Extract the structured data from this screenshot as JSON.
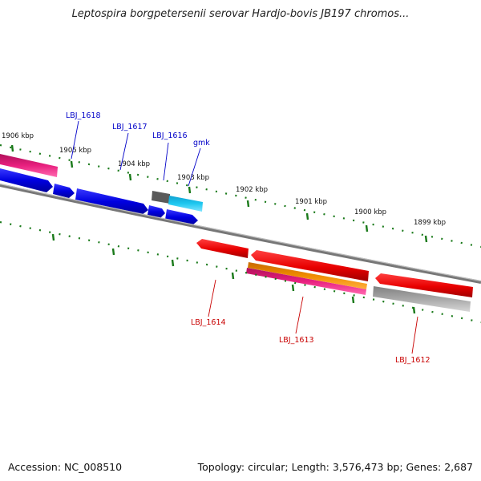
{
  "title": "Leptospira borgpetersenii serovar Hardjo-bovis JB197 chromos...",
  "footer": {
    "accession": "Accession: NC_008510",
    "topology": "Topology: circular; Length: 3,576,473 bp; Genes: 2,687"
  },
  "ruler": {
    "labels": [
      "1906 kbp",
      "1905 kbp",
      "1904 kbp",
      "1903 kbp",
      "1902 kbp",
      "1901 kbp",
      "1900 kbp",
      "1899 kbp"
    ]
  },
  "genes": {
    "forward": [
      "LBJ_1618",
      "LBJ_1617",
      "LBJ_1616",
      "gmk"
    ],
    "reverse": [
      "LBJ_1614",
      "LBJ_1613",
      "LBJ_1612"
    ]
  },
  "colors": {
    "forward_gene": "#0000e0",
    "reverse_gene": "#e00000",
    "pink_feature": "#e8207f",
    "orange_feature": "#f08c00",
    "cyan_feature": "#1ec8f0",
    "gray_feature": "#a8a8a8",
    "dark_gray_feature": "#555555",
    "backbone": "#808080",
    "tick_color": "#1a7a1a",
    "forward_label_color": "#0000c8",
    "reverse_label_color": "#c80000"
  }
}
